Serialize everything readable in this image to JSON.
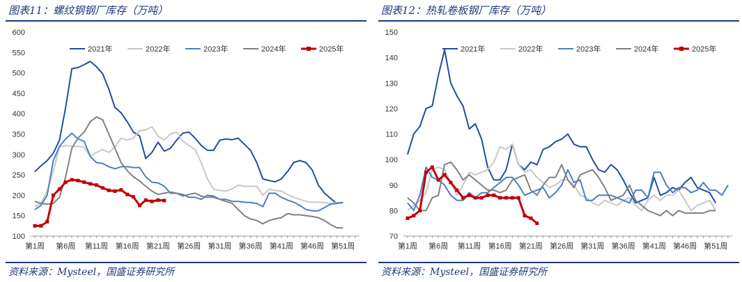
{
  "chart_data": [
    {
      "type": "line",
      "title": "图表11：螺纹钢钢厂库存（万吨）",
      "source": "资料来源：Mysteel，国盛证券研究所",
      "ylim": [
        100,
        600
      ],
      "yticks": [
        100,
        150,
        200,
        250,
        300,
        350,
        400,
        450,
        500,
        550,
        600
      ],
      "xlabels": [
        "第1周",
        "第6周",
        "第11周",
        "第16周",
        "第21周",
        "第26周",
        "第31周",
        "第36周",
        "第41周",
        "第46周",
        "第51周"
      ],
      "xlabel_weeks": [
        1,
        6,
        11,
        16,
        21,
        26,
        31,
        36,
        41,
        46,
        51
      ],
      "weeks": 53,
      "series": [
        {
          "name": "2021年",
          "color": "#1f4e9e",
          "width": 2,
          "markers": false,
          "values": [
            258,
            272,
            285,
            303,
            335,
            415,
            510,
            513,
            520,
            528,
            515,
            498,
            460,
            415,
            402,
            380,
            355,
            345,
            290,
            305,
            330,
            308,
            315,
            335,
            352,
            355,
            340,
            322,
            310,
            310,
            335,
            338,
            336,
            340,
            325,
            310,
            280,
            240,
            236,
            233,
            240,
            258,
            280,
            285,
            280,
            262,
            225,
            205,
            192,
            180,
            182
          ]
        },
        {
          "name": "2022年",
          "color": "#c8c8c8",
          "width": 2,
          "markers": false,
          "values": [
            172,
            180,
            210,
            260,
            318,
            322,
            320,
            320,
            318,
            295,
            305,
            312,
            305,
            318,
            340,
            335,
            340,
            358,
            360,
            368,
            345,
            335,
            350,
            355,
            333,
            322,
            312,
            280,
            240,
            215,
            212,
            210,
            215,
            225,
            222,
            222,
            222,
            200,
            215,
            212,
            210,
            202,
            195,
            190,
            185,
            183,
            183,
            182,
            180,
            182,
            182
          ]
        },
        {
          "name": "2023年",
          "color": "#4a7fc4",
          "width": 2,
          "markers": false,
          "values": [
            165,
            175,
            200,
            285,
            320,
            338,
            352,
            338,
            332,
            295,
            280,
            278,
            270,
            265,
            270,
            270,
            268,
            268,
            245,
            232,
            230,
            222,
            205,
            205,
            202,
            195,
            195,
            190,
            200,
            198,
            190,
            190,
            185,
            185,
            183,
            182,
            180,
            172,
            205,
            205,
            195,
            188,
            183,
            175,
            165,
            162,
            162,
            170,
            178,
            180,
            182
          ]
        },
        {
          "name": "2024年",
          "color": "#808080",
          "width": 2,
          "markers": false,
          "values": [
            185,
            180,
            178,
            180,
            195,
            245,
            315,
            340,
            355,
            380,
            392,
            385,
            350,
            315,
            280,
            260,
            245,
            235,
            222,
            210,
            202,
            205,
            208,
            205,
            198,
            202,
            205,
            198,
            195,
            195,
            190,
            185,
            180,
            165,
            150,
            142,
            138,
            130,
            138,
            142,
            145,
            155,
            152,
            152,
            150,
            148,
            145,
            138,
            128,
            120,
            120
          ]
        },
        {
          "name": "2025年",
          "color": "#c00000",
          "width": 3,
          "markers": true,
          "values": [
            125,
            125,
            135,
            200,
            215,
            232,
            238,
            236,
            232,
            228,
            225,
            218,
            212,
            210,
            213,
            202,
            196,
            175,
            188,
            185,
            188,
            187
          ]
        }
      ]
    },
    {
      "type": "line",
      "title": "图表12：热轧卷板钢厂库存（万吨）",
      "source": "资料来源：Mysteel，国盛证券研究所",
      "ylim": [
        70,
        150
      ],
      "yticks": [
        70,
        80,
        90,
        100,
        110,
        120,
        130,
        140,
        150
      ],
      "xlabels": [
        "第1周",
        "第6周",
        "第11周",
        "第16周",
        "第21周",
        "第26周",
        "第31周",
        "第36周",
        "第41周",
        "第46周",
        "第51周"
      ],
      "xlabel_weeks": [
        1,
        6,
        11,
        16,
        21,
        26,
        31,
        36,
        41,
        46,
        51
      ],
      "weeks": 53,
      "series": [
        {
          "name": "2021年",
          "color": "#1f4e9e",
          "width": 2,
          "markers": false,
          "values": [
            102,
            110,
            113,
            120,
            121,
            133,
            143,
            130,
            125,
            121,
            112,
            114,
            108,
            97,
            92,
            92,
            96,
            106,
            98,
            96,
            99,
            98,
            104,
            105,
            107,
            108,
            110,
            106,
            105,
            105,
            100,
            96,
            95,
            98,
            96,
            92,
            87,
            83,
            84,
            85,
            93,
            86,
            87,
            89,
            88,
            91,
            93,
            89,
            88,
            87,
            83
          ]
        },
        {
          "name": "2022年",
          "color": "#c8c8c8",
          "width": 2,
          "markers": false,
          "values": [
            80,
            82,
            84,
            87,
            96,
            97,
            96,
            91,
            86,
            90,
            95,
            94,
            95,
            96,
            99,
            105,
            104,
            106,
            98,
            95,
            96,
            93,
            91,
            89,
            90,
            92,
            92,
            90,
            86,
            85,
            83,
            82,
            84,
            83,
            82,
            84,
            85,
            82,
            80,
            84,
            86,
            84,
            86,
            86,
            88,
            84,
            80,
            82,
            83,
            84,
            80
          ]
        },
        {
          "name": "2023年",
          "color": "#4a7fc4",
          "width": 2,
          "markers": false,
          "values": [
            83,
            80,
            86,
            97,
            93,
            92,
            90,
            86,
            84,
            84,
            87,
            85,
            87,
            87,
            89,
            91,
            93,
            93,
            90,
            86,
            87,
            88,
            89,
            85,
            87,
            90,
            96,
            91,
            92,
            84,
            84,
            86,
            86,
            86,
            85,
            84,
            83,
            88,
            88,
            85,
            95,
            95,
            90,
            87,
            89,
            89,
            87,
            88,
            91,
            88,
            88,
            86,
            90
          ]
        },
        {
          "name": "2024年",
          "color": "#808080",
          "width": 2,
          "markers": false,
          "values": [
            85,
            83,
            80,
            80,
            85,
            86,
            98,
            99,
            96,
            92,
            94,
            92,
            90,
            88,
            88,
            87,
            88,
            92,
            93,
            94,
            88,
            86,
            90,
            93,
            93,
            98,
            92,
            89,
            94,
            95,
            96,
            93,
            89,
            84,
            85,
            86,
            90,
            84,
            82,
            80,
            79,
            78,
            80,
            78,
            80,
            79,
            79,
            79,
            79,
            80,
            80
          ]
        },
        {
          "name": "2025年",
          "color": "#c00000",
          "width": 3,
          "markers": true,
          "values": [
            77,
            78,
            80,
            95,
            97,
            92,
            94,
            91,
            88,
            85,
            86,
            85,
            85,
            86,
            86,
            85,
            85,
            85,
            85,
            78,
            77,
            75
          ]
        }
      ]
    }
  ]
}
